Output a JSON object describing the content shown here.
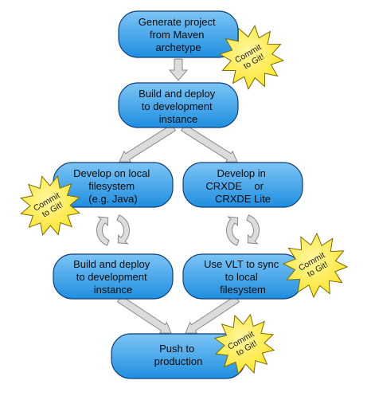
{
  "colors": {
    "node_fill_top": "#7cc4f5",
    "node_fill_bottom": "#1f8fe0",
    "node_stroke": "#0f3f78",
    "burst_fill": "#ffe21a",
    "burst_stroke": "#7a6a00",
    "arrow_fill": "#dcdcdc",
    "arrow_stroke": "#8a8a8a"
  },
  "nodes": {
    "generate": {
      "lines": [
        "Generate project",
        "from Maven",
        "archetype"
      ]
    },
    "build_top": {
      "lines": [
        "Build and deploy",
        "to development",
        "instance"
      ]
    },
    "develop_local": {
      "lines": [
        "Develop on local",
        "filesystem",
        "(e.g. Java)"
      ]
    },
    "develop_crxde": {
      "lines": [
        "Develop in",
        "CRXDE",
        "or",
        "CRXDE Lite"
      ]
    },
    "build_bottom": {
      "lines": [
        "Build and deploy",
        "to development",
        "instance"
      ]
    },
    "vlt_sync": {
      "lines": [
        "Use VLT to sync",
        "to local",
        "filesystem"
      ]
    },
    "push": {
      "lines": [
        "Push to",
        "production"
      ]
    }
  },
  "commit_badges": {
    "badge_1": {
      "lines": [
        "Commit",
        "to Git!"
      ]
    },
    "badge_2": {
      "lines": [
        "Commit",
        "to Git!"
      ]
    },
    "badge_3": {
      "lines": [
        "Commit",
        "to Git!"
      ]
    },
    "badge_4": {
      "lines": [
        "Commit",
        "to Git!"
      ]
    }
  },
  "cycle_icons": [
    "refresh-cycle-icon",
    "refresh-cycle-icon"
  ]
}
